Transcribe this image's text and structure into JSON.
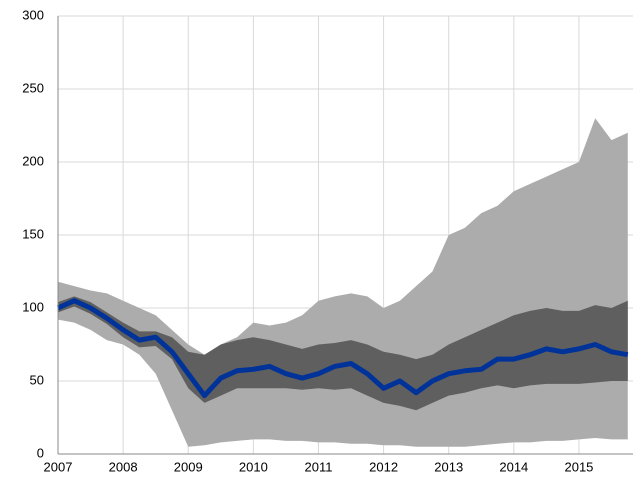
{
  "chart_data": {
    "type": "fan",
    "x": [
      2007,
      2007.25,
      2007.5,
      2007.75,
      2008,
      2008.25,
      2008.5,
      2008.75,
      2009,
      2009.25,
      2009.5,
      2009.75,
      2010,
      2010.25,
      2010.5,
      2010.75,
      2011,
      2011.25,
      2011.5,
      2011.75,
      2012,
      2012.25,
      2012.5,
      2012.75,
      2013,
      2013.25,
      2013.5,
      2013.75,
      2014,
      2014.25,
      2014.5,
      2014.75,
      2015,
      2015.25,
      2015.5,
      2015.75
    ],
    "bands": [
      {
        "color": "#acacac",
        "high": [
          118,
          115,
          112,
          110,
          105,
          100,
          95,
          85,
          75,
          68,
          75,
          80,
          90,
          88,
          90,
          95,
          105,
          108,
          110,
          108,
          100,
          105,
          115,
          125,
          150,
          155,
          165,
          170,
          180,
          185,
          190,
          195,
          200,
          230,
          215,
          220
        ],
        "low": [
          92,
          90,
          85,
          78,
          75,
          68,
          55,
          30,
          5,
          6,
          8,
          9,
          10,
          10,
          9,
          9,
          8,
          8,
          7,
          7,
          6,
          6,
          5,
          5,
          5,
          5,
          6,
          7,
          8,
          8,
          9,
          9,
          10,
          11,
          10,
          10
        ]
      },
      {
        "color": "#5f5f5f",
        "high": [
          104,
          108,
          104,
          97,
          90,
          84,
          84,
          80,
          70,
          68,
          75,
          78,
          80,
          78,
          75,
          72,
          75,
          76,
          78,
          75,
          70,
          68,
          65,
          68,
          75,
          80,
          85,
          90,
          95,
          98,
          100,
          98,
          98,
          102,
          100,
          105
        ],
        "low": [
          97,
          101,
          96,
          89,
          80,
          73,
          74,
          65,
          45,
          35,
          40,
          45,
          45,
          45,
          45,
          44,
          45,
          44,
          45,
          40,
          35,
          33,
          30,
          35,
          40,
          42,
          45,
          47,
          45,
          47,
          48,
          48,
          48,
          49,
          50,
          50
        ]
      }
    ],
    "series": [
      {
        "color": "#003399",
        "values": [
          100,
          105,
          100,
          93,
          85,
          78,
          80,
          70,
          55,
          40,
          52,
          57,
          58,
          60,
          55,
          52,
          55,
          60,
          62,
          55,
          45,
          50,
          42,
          50,
          55,
          57,
          58,
          65,
          65,
          68,
          72,
          70,
          72,
          75,
          70,
          68
        ]
      }
    ],
    "xlim": [
      2007,
      2015.83
    ],
    "xticks": [
      2007,
      2008,
      2009,
      2010,
      2011,
      2012,
      2013,
      2014,
      2015
    ],
    "ylim": [
      0,
      300
    ],
    "yticks": [
      0,
      50,
      100,
      150,
      200,
      250,
      300
    ],
    "grid": true
  }
}
